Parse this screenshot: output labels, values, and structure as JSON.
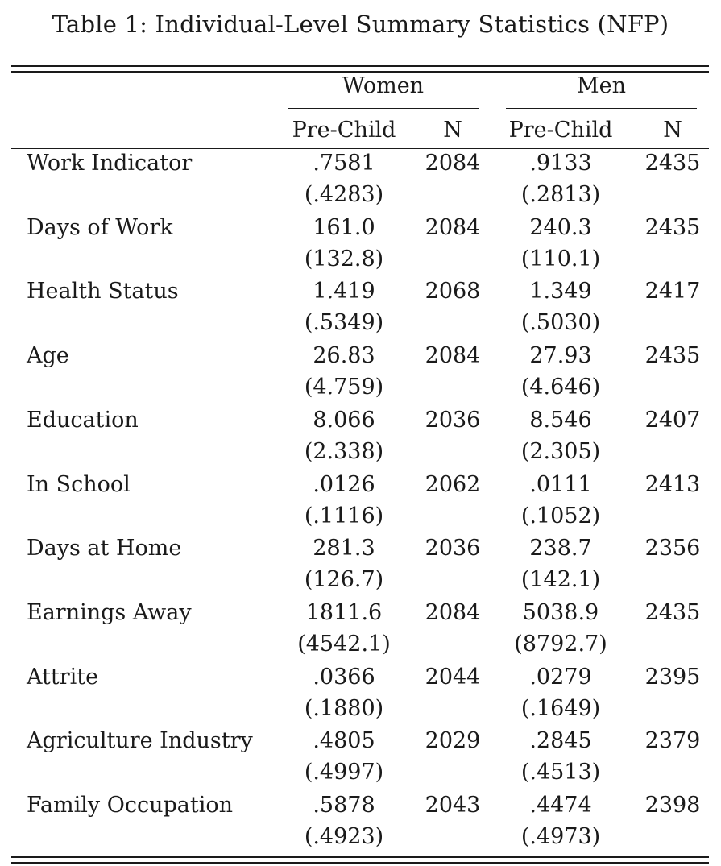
{
  "caption": "Table 1: Individual-Level Summary Statistics (NFP)",
  "groups": {
    "women": "Women",
    "men": "Men"
  },
  "subheaders": {
    "women_mean": "Pre-Child",
    "women_n": "N",
    "men_mean": "Pre-Child",
    "men_n": "N"
  },
  "rows": [
    {
      "label": "Work Indicator",
      "women_mean": ".7581",
      "women_sd": "(.4283)",
      "women_n": "2084",
      "men_mean": ".9133",
      "men_sd": "(.2813)",
      "men_n": "2435"
    },
    {
      "label": "Days of Work",
      "women_mean": "161.0",
      "women_sd": "(132.8)",
      "women_n": "2084",
      "men_mean": "240.3",
      "men_sd": "(110.1)",
      "men_n": "2435"
    },
    {
      "label": "Health Status",
      "women_mean": "1.419",
      "women_sd": "(.5349)",
      "women_n": "2068",
      "men_mean": "1.349",
      "men_sd": "(.5030)",
      "men_n": "2417"
    },
    {
      "label": "Age",
      "women_mean": "26.83",
      "women_sd": "(4.759)",
      "women_n": "2084",
      "men_mean": "27.93",
      "men_sd": "(4.646)",
      "men_n": "2435"
    },
    {
      "label": "Education",
      "women_mean": "8.066",
      "women_sd": "(2.338)",
      "women_n": "2036",
      "men_mean": "8.546",
      "men_sd": "(2.305)",
      "men_n": "2407"
    },
    {
      "label": "In School",
      "women_mean": ".0126",
      "women_sd": "(.1116)",
      "women_n": "2062",
      "men_mean": ".0111",
      "men_sd": "(.1052)",
      "men_n": "2413"
    },
    {
      "label": "Days at Home",
      "women_mean": "281.3",
      "women_sd": "(126.7)",
      "women_n": "2036",
      "men_mean": "238.7",
      "men_sd": "(142.1)",
      "men_n": "2356"
    },
    {
      "label": "Earnings Away",
      "women_mean": "1811.6",
      "women_sd": "(4542.1)",
      "women_n": "2084",
      "men_mean": "5038.9",
      "men_sd": "(8792.7)",
      "men_n": "2435"
    },
    {
      "label": "Attrite",
      "women_mean": ".0366",
      "women_sd": "(.1880)",
      "women_n": "2044",
      "men_mean": ".0279",
      "men_sd": "(.1649)",
      "men_n": "2395"
    },
    {
      "label": "Agriculture Industry",
      "women_mean": ".4805",
      "women_sd": "(.4997)",
      "women_n": "2029",
      "men_mean": ".2845",
      "men_sd": "(.4513)",
      "men_n": "2379"
    },
    {
      "label": "Family Occupation",
      "women_mean": ".5878",
      "women_sd": "(.4923)",
      "women_n": "2043",
      "men_mean": ".4474",
      "men_sd": "(.4973)",
      "men_n": "2398"
    }
  ]
}
